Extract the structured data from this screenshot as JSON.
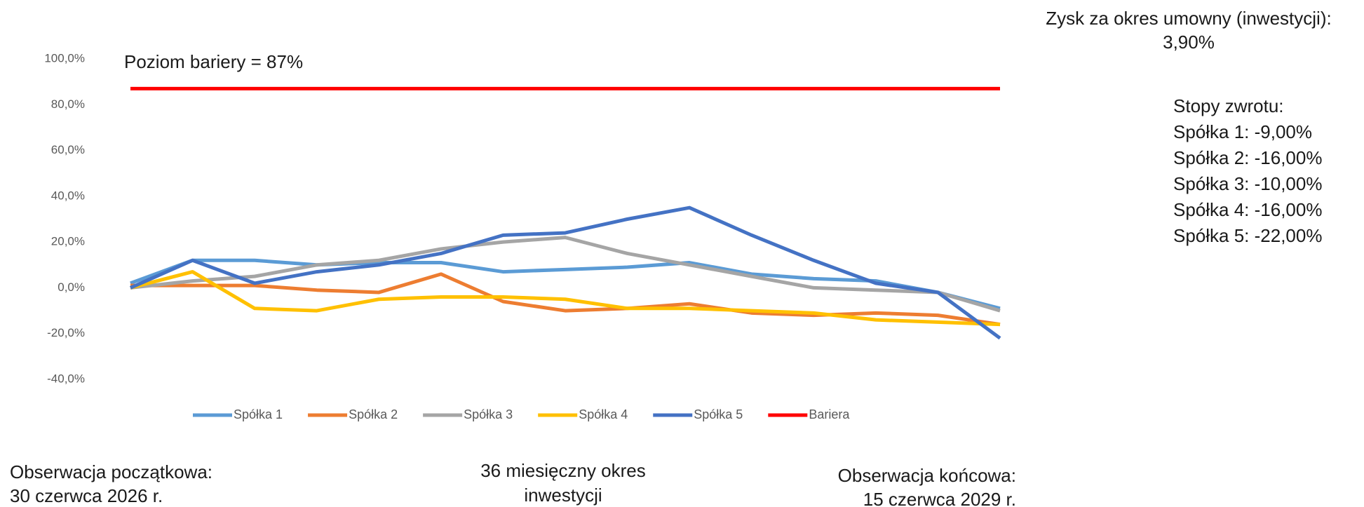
{
  "chart_data": {
    "type": "line",
    "annotation": "Poziom bariery = 87%",
    "categories": [
      null,
      null,
      null,
      null,
      null,
      null,
      null,
      null,
      null,
      null,
      null,
      null,
      null,
      null,
      null
    ],
    "series": [
      {
        "name": "Spółka 1",
        "color": "#5b9bd5",
        "values": [
          2,
          12,
          12,
          10,
          11,
          11,
          7,
          8,
          9,
          11,
          6,
          4,
          3,
          -2,
          -9
        ]
      },
      {
        "name": "Spółka 2",
        "color": "#ed7d31",
        "values": [
          1,
          1,
          1,
          -1,
          -2,
          6,
          -6,
          -10,
          -9,
          -7,
          -11,
          -12,
          -11,
          -12,
          -16
        ]
      },
      {
        "name": "Spółka 3",
        "color": "#a5a5a5",
        "values": [
          0,
          3,
          5,
          10,
          12,
          17,
          20,
          22,
          15,
          10,
          5,
          0,
          -1,
          -2,
          -10
        ]
      },
      {
        "name": "Spółka 4",
        "color": "#ffc000",
        "values": [
          0,
          7,
          -9,
          -10,
          -5,
          -4,
          -4,
          -5,
          -9,
          -9,
          -10,
          -11,
          -14,
          -15,
          -16
        ]
      },
      {
        "name": "Spółka 5",
        "color": "#4472c4",
        "values": [
          0,
          12,
          2,
          7,
          10,
          15,
          23,
          24,
          30,
          35,
          23,
          12,
          2,
          -2,
          -22
        ]
      },
      {
        "name": "Bariera",
        "color": "#ff0000",
        "values": [
          87,
          87,
          87,
          87,
          87,
          87,
          87,
          87,
          87,
          87,
          87,
          87,
          87,
          87,
          87
        ]
      }
    ],
    "ylim": [
      -40,
      100
    ],
    "yticks": [
      {
        "value": -40,
        "label": "-40,0%"
      },
      {
        "value": -20,
        "label": "-20,0%"
      },
      {
        "value": 0,
        "label": "0,0%"
      },
      {
        "value": 20,
        "label": "20,0%"
      },
      {
        "value": 40,
        "label": "40,0%"
      },
      {
        "value": 60,
        "label": "60,0%"
      },
      {
        "value": 80,
        "label": "80,0%"
      },
      {
        "value": 100,
        "label": "100,0%"
      }
    ],
    "grid": false,
    "legend": "bottom"
  },
  "side_panel": {
    "profit_title": "Zysk za okres umowny (inwestycji):",
    "profit_value": "3,90%",
    "returns_title": "Stopy zwrotu:",
    "returns": [
      "Spółka 1: -9,00%",
      "Spółka 2: -16,00%",
      "Spółka 3: -10,00%",
      "Spółka 4: -16,00%",
      "Spółka 5: -22,00%"
    ]
  },
  "footer": {
    "start": [
      "Obserwacja początkowa:",
      "30 czerwca 2026 r."
    ],
    "period": [
      "36 miesięczny okres",
      "inwestycji"
    ],
    "end": [
      "Obserwacja  końcowa:",
      "15 czerwca 2029 r."
    ]
  }
}
